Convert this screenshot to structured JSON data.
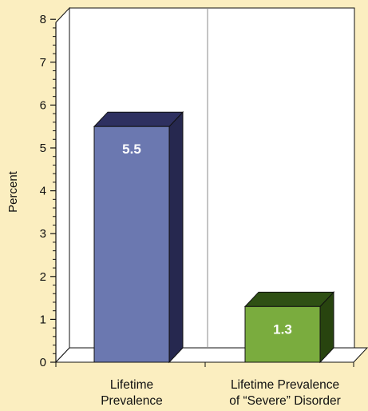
{
  "chart_data": {
    "type": "bar",
    "categories": [
      [
        "Lifetime",
        "Prevalence"
      ],
      [
        "Lifetime Prevalence",
        "of “Severe” Disorder"
      ]
    ],
    "values": [
      5.5,
      1.3
    ],
    "data_labels": [
      "5.5",
      "1.3"
    ],
    "ylabel": "Percent",
    "ylim": [
      0,
      8
    ],
    "yticks": [
      "0",
      "1",
      "2",
      "3",
      "4",
      "5",
      "6",
      "7",
      "8"
    ],
    "bar_colors": [
      {
        "front": "#6b78b0",
        "top": "#2e3060",
        "side": "#26284f"
      },
      {
        "front": "#7aac3e",
        "top": "#2f5014",
        "side": "#28440f"
      }
    ],
    "background": "#fbeec0",
    "plot_background": "#ffffff",
    "grid": false
  }
}
